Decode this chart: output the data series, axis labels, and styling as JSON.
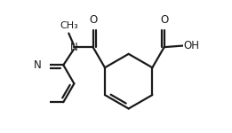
{
  "background_color": "#ffffff",
  "line_color": "#1a1a1a",
  "line_width": 1.6,
  "font_size": 8.5,
  "figsize": [
    2.61,
    1.5
  ],
  "dpi": 100,
  "xlim": [
    0.05,
    0.95
  ],
  "ylim": [
    0.05,
    0.95
  ]
}
